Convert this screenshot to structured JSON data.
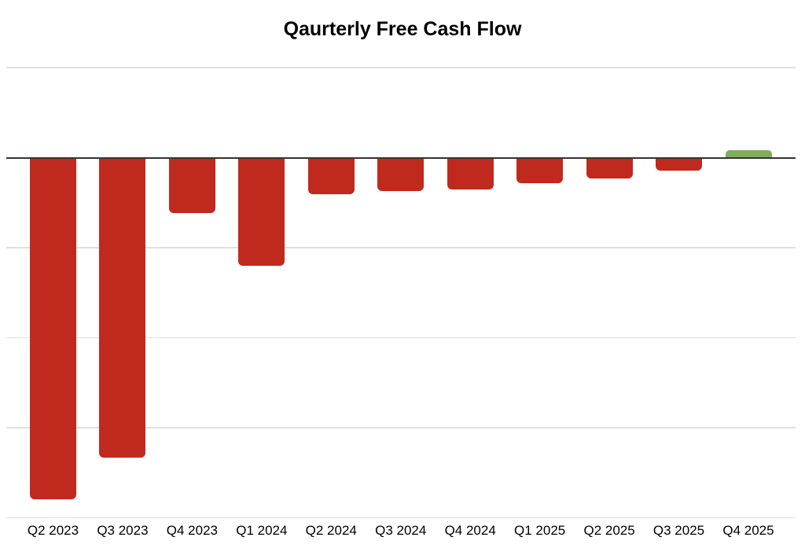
{
  "page": {
    "background": "#FFFFFF"
  },
  "chart_data": {
    "type": "bar",
    "title": "Qaurterly Free Cash Flow",
    "categories": [
      "Q2 2023",
      "Q3 2023",
      "Q4 2023",
      "Q1 2024",
      "Q2 2024",
      "Q3 2024",
      "Q4 2024",
      "Q1 2025",
      "Q2 2025",
      "Q3 2025",
      "Q4 2025"
    ],
    "values": [
      -380,
      -333,
      -62,
      -120,
      -41,
      -37,
      -35,
      -28,
      -23,
      -14,
      8
    ],
    "xlabel": "",
    "ylabel": "",
    "legend": "none",
    "y_axis": {
      "tick_labels_visible": false,
      "gridline_values": [
        100,
        0,
        -100,
        -200,
        -300,
        -400
      ],
      "ylim": [
        -400,
        100
      ],
      "zero_line": true
    },
    "units_note": "y-axis has no visible numeric labels; values are relative units where one gridline spacing = 100",
    "colors": {
      "negative_bar": "#C02A1E",
      "positive_bar": "#80AD5B",
      "gridline": "#E0E0E0",
      "zero_line": "#333333",
      "title_text": "#000000",
      "tick_text": "#000000"
    }
  }
}
